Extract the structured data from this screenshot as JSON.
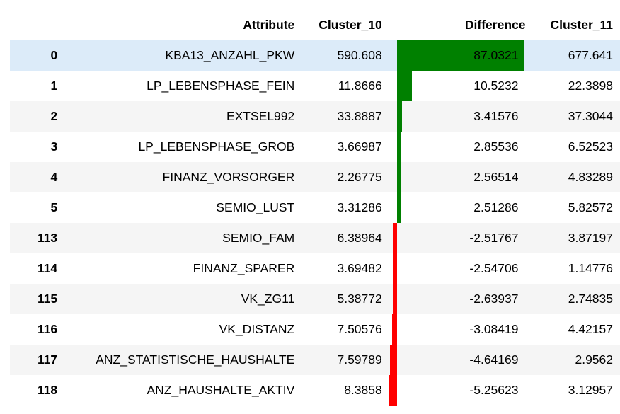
{
  "table": {
    "headers": {
      "index": "",
      "attribute": "Attribute",
      "cluster_10": "Cluster_10",
      "difference": "Difference",
      "cluster_11": "Cluster_11"
    },
    "bar_colors": {
      "positive": "#008000",
      "negative": "#ff0000",
      "highlight_row": "#dcebf9"
    },
    "diff_scale": {
      "max_positive": 87.0321,
      "zero_offset": 5.25623
    },
    "rows": [
      {
        "index": "0",
        "attribute": "KBA13_ANZAHL_PKW",
        "cluster_10": "590.608",
        "difference": "87.0321",
        "diff_value": 87.0321,
        "cluster_11": "677.641",
        "highlight": true
      },
      {
        "index": "1",
        "attribute": "LP_LEBENSPHASE_FEIN",
        "cluster_10": "11.8666",
        "difference": "10.5232",
        "diff_value": 10.5232,
        "cluster_11": "22.3898"
      },
      {
        "index": "2",
        "attribute": "EXTSEL992",
        "cluster_10": "33.8887",
        "difference": "3.41576",
        "diff_value": 3.41576,
        "cluster_11": "37.3044"
      },
      {
        "index": "3",
        "attribute": "LP_LEBENSPHASE_GROB",
        "cluster_10": "3.66987",
        "difference": "2.85536",
        "diff_value": 2.85536,
        "cluster_11": "6.52523"
      },
      {
        "index": "4",
        "attribute": "FINANZ_VORSORGER",
        "cluster_10": "2.26775",
        "difference": "2.56514",
        "diff_value": 2.56514,
        "cluster_11": "4.83289"
      },
      {
        "index": "5",
        "attribute": "SEMIO_LUST",
        "cluster_10": "3.31286",
        "difference": "2.51286",
        "diff_value": 2.51286,
        "cluster_11": "5.82572"
      },
      {
        "index": "113",
        "attribute": "SEMIO_FAM",
        "cluster_10": "6.38964",
        "difference": "-2.51767",
        "diff_value": -2.51767,
        "cluster_11": "3.87197"
      },
      {
        "index": "114",
        "attribute": "FINANZ_SPARER",
        "cluster_10": "3.69482",
        "difference": "-2.54706",
        "diff_value": -2.54706,
        "cluster_11": "1.14776"
      },
      {
        "index": "115",
        "attribute": "VK_ZG11",
        "cluster_10": "5.38772",
        "difference": "-2.63937",
        "diff_value": -2.63937,
        "cluster_11": "2.74835"
      },
      {
        "index": "116",
        "attribute": "VK_DISTANZ",
        "cluster_10": "7.50576",
        "difference": "-3.08419",
        "diff_value": -3.08419,
        "cluster_11": "4.42157"
      },
      {
        "index": "117",
        "attribute": "ANZ_STATISTISCHE_HAUSHALTE",
        "cluster_10": "7.59789",
        "difference": "-4.64169",
        "diff_value": -4.64169,
        "cluster_11": "2.9562"
      },
      {
        "index": "118",
        "attribute": "ANZ_HAUSHALTE_AKTIV",
        "cluster_10": "8.3858",
        "difference": "-5.25623",
        "diff_value": -5.25623,
        "cluster_11": "3.12957"
      }
    ]
  }
}
